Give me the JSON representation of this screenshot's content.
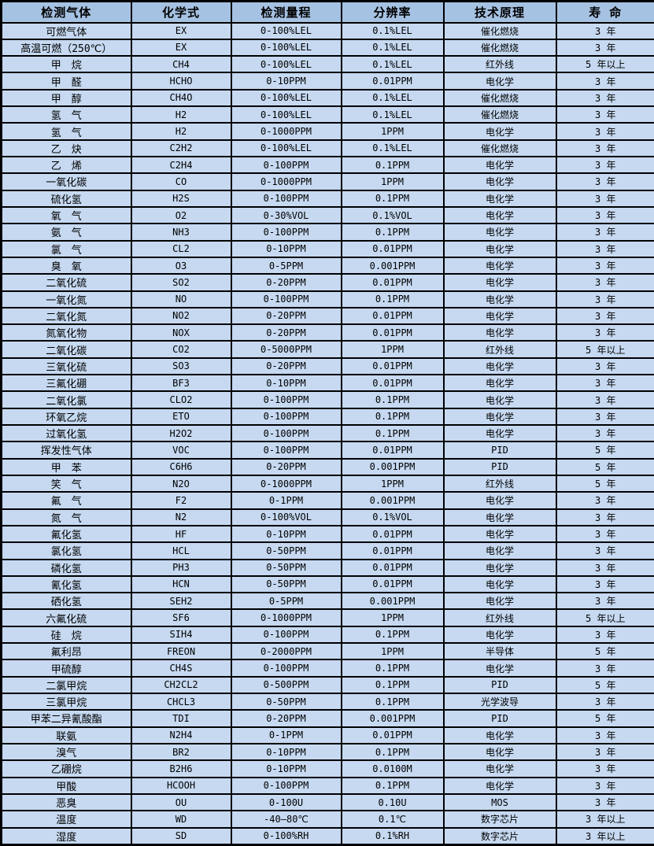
{
  "chart_data": {
    "type": "table",
    "columns": [
      "检测气体",
      "化学式",
      "检测量程",
      "分辨率",
      "技术原理",
      "寿 命"
    ],
    "rows": [
      [
        "可燃气体",
        "EX",
        "0-100%LEL",
        "0.1%LEL",
        "催化燃烧",
        "3 年"
      ],
      [
        "高温可燃（250℃）",
        "EX",
        "0-100%LEL",
        "0.1%LEL",
        "催化燃烧",
        "3 年"
      ],
      [
        "甲　烷",
        "CH4",
        "0-100%LEL",
        "0.1%LEL",
        "红外线",
        "5 年以上"
      ],
      [
        "甲　醛",
        "HCHO",
        "0-10PPM",
        "0.01PPM",
        "电化学",
        "3 年"
      ],
      [
        "甲　醇",
        "CH4O",
        "0-100%LEL",
        "0.1%LEL",
        "催化燃烧",
        "3 年"
      ],
      [
        "氢　气",
        "H2",
        "0-100%LEL",
        "0.1%LEL",
        "催化燃烧",
        "3 年"
      ],
      [
        "氢　气",
        "H2",
        "0-1000PPM",
        "1PPM",
        "电化学",
        "3 年"
      ],
      [
        "乙　炔",
        "C2H2",
        "0-100%LEL",
        "0.1%LEL",
        "催化燃烧",
        "3 年"
      ],
      [
        "乙　烯",
        "C2H4",
        "0-100PPM",
        "0.1PPM",
        "电化学",
        "3 年"
      ],
      [
        "一氧化碳",
        "CO",
        "0-1000PPM",
        "1PPM",
        "电化学",
        "3 年"
      ],
      [
        "硫化氢",
        "H2S",
        "0-100PPM",
        "0.1PPM",
        "电化学",
        "3 年"
      ],
      [
        "氧　气",
        "O2",
        "0-30%VOL",
        "0.1%VOL",
        "电化学",
        "3 年"
      ],
      [
        "氨　气",
        "NH3",
        "0-100PPM",
        "0.1PPM",
        "电化学",
        "3 年"
      ],
      [
        "氯　气",
        "CL2",
        "0-10PPM",
        "0.01PPM",
        "电化学",
        "3 年"
      ],
      [
        "臭　氧",
        "O3",
        "0-5PPM",
        "0.001PPM",
        "电化学",
        "3 年"
      ],
      [
        "二氧化硫",
        "SO2",
        "0-20PPM",
        "0.01PPM",
        "电化学",
        "3 年"
      ],
      [
        "一氧化氮",
        "NO",
        "0-100PPM",
        "0.1PPM",
        "电化学",
        "3 年"
      ],
      [
        "二氧化氮",
        "NO2",
        "0-20PPM",
        "0.01PPM",
        "电化学",
        "3 年"
      ],
      [
        "氮氧化物",
        "NOX",
        "0-20PPM",
        "0.01PPM",
        "电化学",
        "3 年"
      ],
      [
        "二氧化碳",
        "CO2",
        "0-5000PPM",
        "1PPM",
        "红外线",
        "5 年以上"
      ],
      [
        "三氧化硫",
        "SO3",
        "0-20PPM",
        "0.01PPM",
        "电化学",
        "3 年"
      ],
      [
        "三氟化硼",
        "BF3",
        "0-10PPM",
        "0.01PPM",
        "电化学",
        "3 年"
      ],
      [
        "二氧化氯",
        "CLO2",
        "0-100PPM",
        "0.1PPM",
        "电化学",
        "3 年"
      ],
      [
        "环氧乙烷",
        "ETO",
        "0-100PPM",
        "0.1PPM",
        "电化学",
        "3 年"
      ],
      [
        "过氧化氢",
        "H2O2",
        "0-100PPM",
        "0.1PPM",
        "电化学",
        "3 年"
      ],
      [
        "挥发性气体",
        "VOC",
        "0-100PPM",
        "0.01PPM",
        "PID",
        "5 年"
      ],
      [
        "甲　苯",
        "C6H6",
        "0-20PPM",
        "0.001PPM",
        "PID",
        "5 年"
      ],
      [
        "笑　气",
        "N2O",
        "0-1000PPM",
        "1PPM",
        "红外线",
        "5 年"
      ],
      [
        "氟　气",
        "F2",
        "0-1PPM",
        "0.001PPM",
        "电化学",
        "3 年"
      ],
      [
        "氮　气",
        "N2",
        "0-100%VOL",
        "0.1%VOL",
        "电化学",
        "3 年"
      ],
      [
        "氟化氢",
        "HF",
        "0-10PPM",
        "0.01PPM",
        "电化学",
        "3 年"
      ],
      [
        "氯化氢",
        "HCL",
        "0-50PPM",
        "0.01PPM",
        "电化学",
        "3 年"
      ],
      [
        "磷化氢",
        "PH3",
        "0-50PPM",
        "0.01PPM",
        "电化学",
        "3 年"
      ],
      [
        "氰化氢",
        "HCN",
        "0-50PPM",
        "0.01PPM",
        "电化学",
        "3 年"
      ],
      [
        "硒化氢",
        "SEH2",
        "0-5PPM",
        "0.001PPM",
        "电化学",
        "3 年"
      ],
      [
        "六氟化硫",
        "SF6",
        "0-1000PPM",
        "1PPM",
        "红外线",
        "5 年以上"
      ],
      [
        "硅　烷",
        "SIH4",
        "0-100PPM",
        "0.1PPM",
        "电化学",
        "3 年"
      ],
      [
        "氟利昂",
        "FREON",
        "0-2000PPM",
        "1PPM",
        "半导体",
        "5 年"
      ],
      [
        "甲硫醇",
        "CH4S",
        "0-100PPM",
        "0.1PPM",
        "电化学",
        "3 年"
      ],
      [
        "二氯甲烷",
        "CH2CL2",
        "0-500PPM",
        "0.1PPM",
        "PID",
        "5 年"
      ],
      [
        "三氯甲烷",
        "CHCL3",
        "0-50PPM",
        "0.1PPM",
        "光学波导",
        "3 年"
      ],
      [
        "甲苯二异氰酸酯",
        "TDI",
        "0-20PPM",
        "0.001PPM",
        "PID",
        "5 年"
      ],
      [
        "联氨",
        "N2H4",
        "0-1PPM",
        "0.01PPM",
        "电化学",
        "3 年"
      ],
      [
        "溴气",
        "BR2",
        "0-10PPM",
        "0.1PPM",
        "电化学",
        "3 年"
      ],
      [
        "乙硼烷",
        "B2H6",
        "0-10PPM",
        "0.0100M",
        "电化学",
        "3 年"
      ],
      [
        "甲酸",
        "HCOOH",
        "0-100PPM",
        "0.1PPM",
        "电化学",
        "3 年"
      ],
      [
        "恶臭",
        "OU",
        "0-100U",
        "0.10U",
        "MOS",
        "3 年"
      ],
      [
        "温度",
        "WD",
        "-40—80℃",
        "0.1℃",
        "数字芯片",
        "3 年以上"
      ],
      [
        "湿度",
        "SD",
        "0-100%RH",
        "0.1%RH",
        "数字芯片",
        "3 年以上"
      ]
    ]
  },
  "column_keys": [
    "gas",
    "formula",
    "range",
    "resolution",
    "principle",
    "lifespan"
  ],
  "colors": {
    "header_bg": "#a6c2e2",
    "row_bg": "#c6d9f1",
    "border": "#000000",
    "text": "#000000"
  }
}
